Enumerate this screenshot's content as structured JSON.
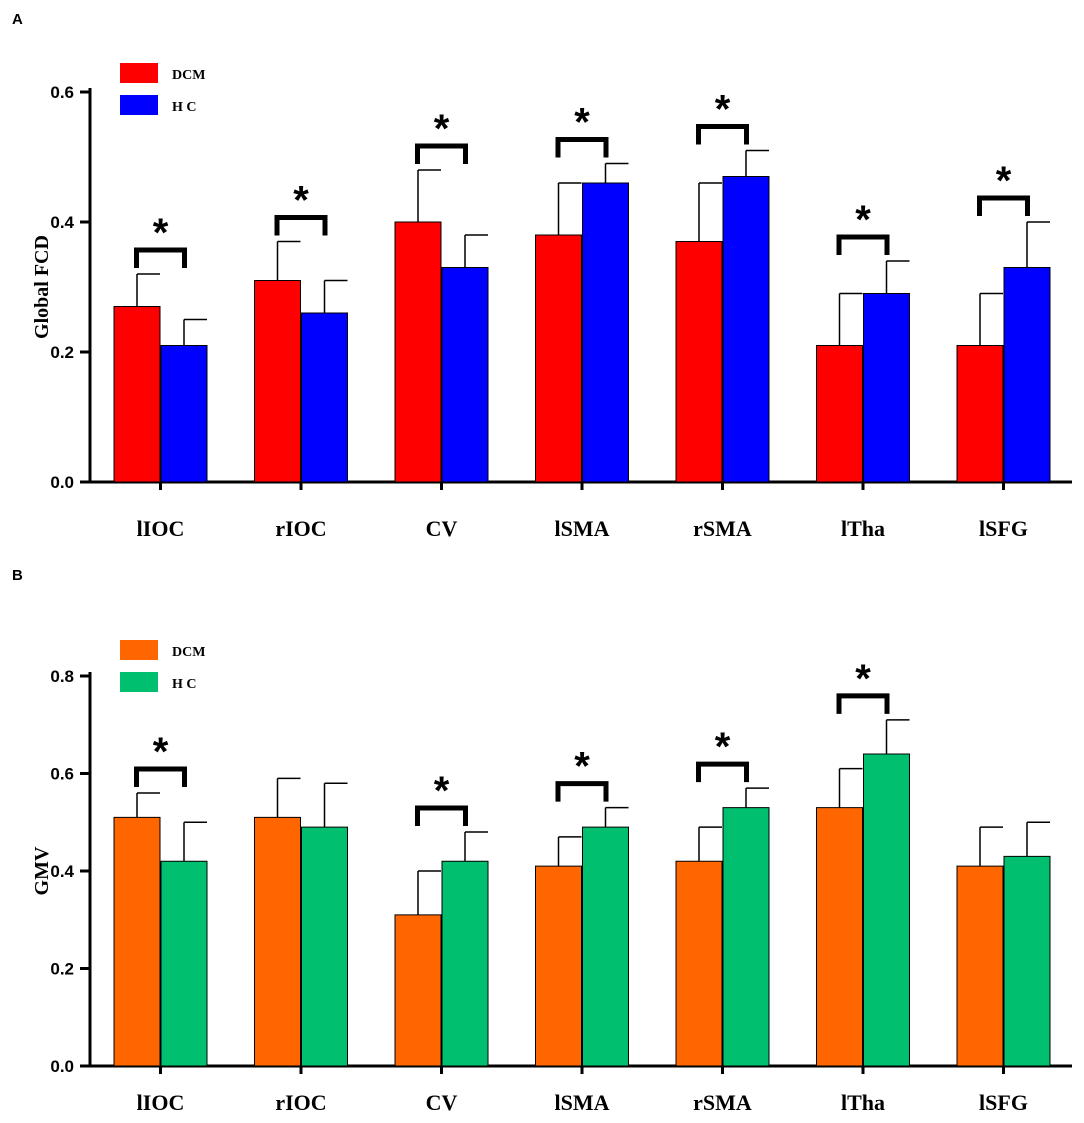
{
  "chart_data": [
    {
      "type": "bar",
      "panel": "A",
      "ylabel": "Global FCD",
      "xlabel": "",
      "ylim": [
        0,
        0.6
      ],
      "yticks": [
        "0.0",
        "0.2",
        "0.4",
        "0.6"
      ],
      "ytick_values": [
        0,
        0.2,
        0.4,
        0.6
      ],
      "categories": [
        "lIOC",
        "rIOC",
        "CV",
        "lSMA",
        "rSMA",
        "lTha",
        "lSFG"
      ],
      "series": [
        {
          "name": "DCM",
          "color": "#ff0000",
          "values": [
            0.27,
            0.31,
            0.4,
            0.38,
            0.37,
            0.21,
            0.21
          ],
          "errors": [
            0.05,
            0.06,
            0.08,
            0.08,
            0.09,
            0.08,
            0.08
          ]
        },
        {
          "name": "HC",
          "color": "#0000ff",
          "values": [
            0.21,
            0.26,
            0.33,
            0.46,
            0.47,
            0.29,
            0.33
          ],
          "errors": [
            0.04,
            0.05,
            0.05,
            0.03,
            0.04,
            0.05,
            0.07
          ]
        }
      ],
      "significance": [
        true,
        true,
        true,
        true,
        true,
        true,
        true
      ],
      "significance_marker": "*",
      "legend": "top-left"
    },
    {
      "type": "bar",
      "panel": "B",
      "ylabel": "GMV",
      "xlabel": "",
      "ylim": [
        0,
        0.8
      ],
      "yticks": [
        "0.0",
        "0.2",
        "0.4",
        "0.6",
        "0.8"
      ],
      "ytick_values": [
        0,
        0.2,
        0.4,
        0.6,
        0.8
      ],
      "categories": [
        "lIOC",
        "rIOC",
        "CV",
        "lSMA",
        "rSMA",
        "lTha",
        "lSFG"
      ],
      "series": [
        {
          "name": "DCM",
          "color": "#ff6600",
          "values": [
            0.51,
            0.51,
            0.31,
            0.41,
            0.42,
            0.53,
            0.41
          ],
          "errors": [
            0.05,
            0.08,
            0.09,
            0.06,
            0.07,
            0.08,
            0.08
          ]
        },
        {
          "name": "HC",
          "color": "#00bf6e",
          "values": [
            0.42,
            0.49,
            0.42,
            0.49,
            0.53,
            0.64,
            0.43
          ],
          "errors": [
            0.08,
            0.09,
            0.06,
            0.04,
            0.04,
            0.07,
            0.07
          ]
        }
      ],
      "significance": [
        true,
        false,
        true,
        true,
        true,
        true,
        false
      ],
      "significance_marker": "*",
      "legend": "top-left"
    }
  ]
}
